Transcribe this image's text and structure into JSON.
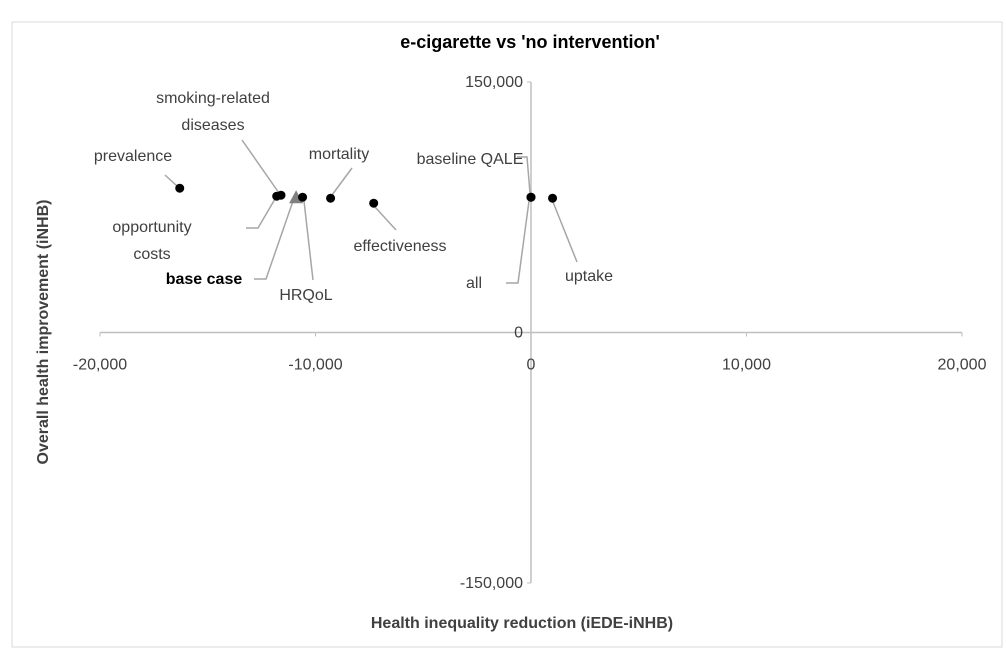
{
  "chart_data": {
    "type": "scatter",
    "title": "e-cigarette vs 'no intervention'",
    "x_label": "Health inequality reduction (iEDE-iNHB)",
    "y_label": "Overall health improvement (iNHB)",
    "xlim": [
      -20000,
      20000
    ],
    "ylim": [
      -150000,
      150000
    ],
    "xticks": [
      {
        "value": -20000,
        "label": "-20,000"
      },
      {
        "value": -10000,
        "label": "-10,000"
      },
      0,
      {
        "value": 10000,
        "label": "10,000"
      },
      {
        "value": 20000,
        "label": "20,000"
      }
    ],
    "yticks": [
      {
        "value": -150000,
        "label": "-150,000"
      },
      0,
      {
        "value": 150000,
        "label": "150,000"
      }
    ],
    "points": [
      {
        "label": "prevalence",
        "x": -16300,
        "y": 86400,
        "marker": "circle",
        "color": "#000000"
      },
      {
        "label": "smoking-related diseases",
        "x": -11600,
        "y": 82200,
        "marker": "circle",
        "color": "#000000"
      },
      {
        "label": "mortality",
        "x": -9300,
        "y": 80400,
        "marker": "circle",
        "color": "#000000"
      },
      {
        "label": "opportunity costs",
        "x": -11800,
        "y": 81600,
        "marker": "circle",
        "color": "#000000"
      },
      {
        "label": "base case",
        "x": -10900,
        "y": 81000,
        "marker": "triangle",
        "color": "#808080"
      },
      {
        "label": "HRQoL",
        "x": -10600,
        "y": 81000,
        "marker": "circle",
        "color": "#000000"
      },
      {
        "label": "effectiveness",
        "x": -7300,
        "y": 77400,
        "marker": "circle",
        "color": "#000000"
      },
      {
        "label": "baseline QALE",
        "x": 0,
        "y": 81000,
        "marker": "circle",
        "color": "#000000"
      },
      {
        "label": "all",
        "x": 0,
        "y": 81000,
        "marker": "circle",
        "color": "#000000"
      },
      {
        "label": "uptake",
        "x": 1000,
        "y": 80400,
        "marker": "circle",
        "color": "#000000"
      }
    ]
  }
}
